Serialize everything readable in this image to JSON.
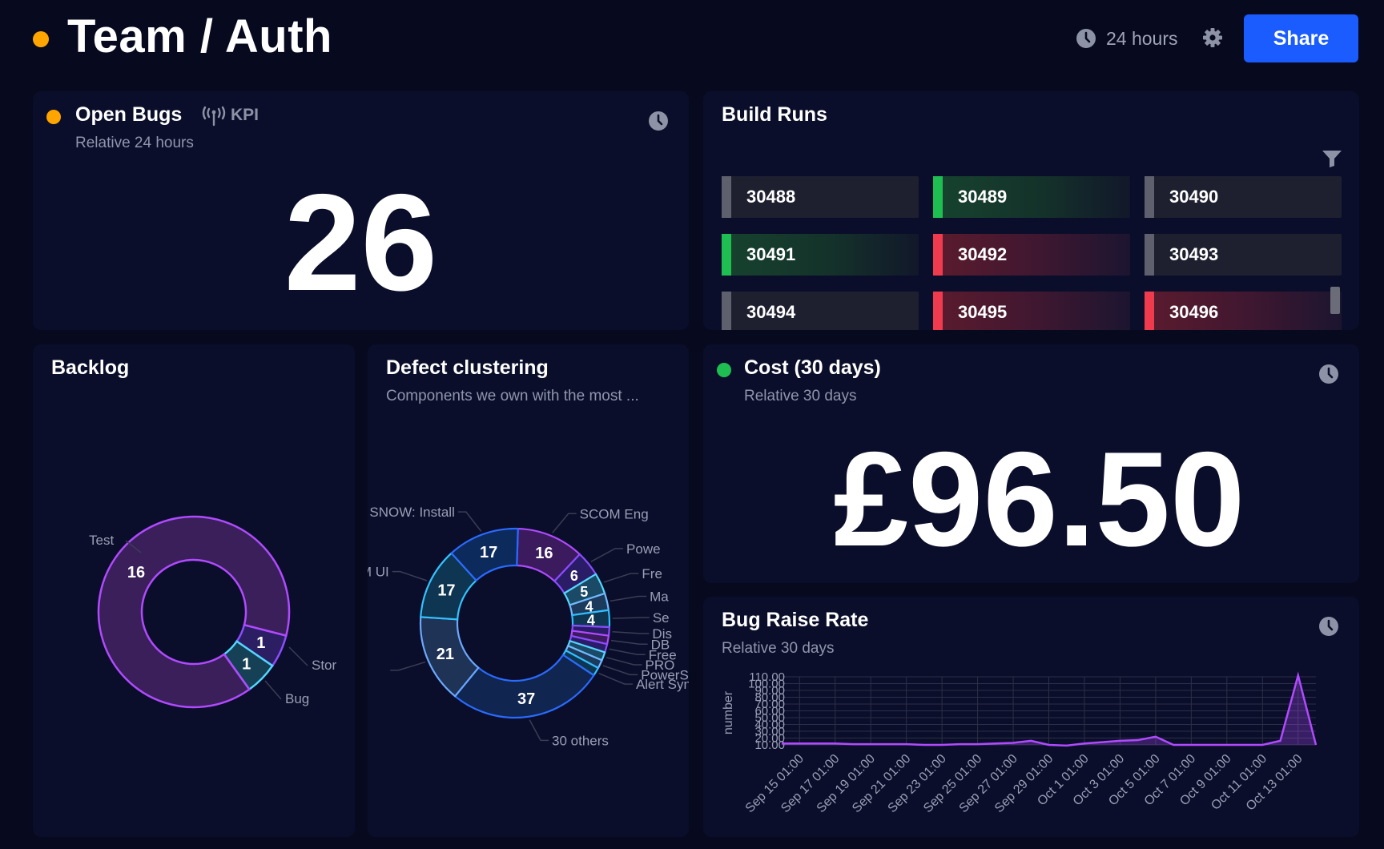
{
  "header": {
    "title": "Team / Auth",
    "time_range": "24 hours",
    "share_label": "Share",
    "status_color": "#ffa500",
    "accent_color": "#1a5cff"
  },
  "open_bugs": {
    "title": "Open Bugs",
    "badge": "KPI",
    "subtitle": "Relative 24 hours",
    "value": "26",
    "status_color": "#ffa500"
  },
  "build_runs": {
    "title": "Build Runs",
    "tiles": [
      {
        "label": "30488",
        "status": "gray"
      },
      {
        "label": "30489",
        "status": "green"
      },
      {
        "label": "30490",
        "status": "gray"
      },
      {
        "label": "30491",
        "status": "green"
      },
      {
        "label": "30492",
        "status": "red"
      },
      {
        "label": "30493",
        "status": "gray"
      },
      {
        "label": "30494",
        "status": "gray"
      },
      {
        "label": "30495",
        "status": "red"
      },
      {
        "label": "30496",
        "status": "red"
      }
    ]
  },
  "backlog": {
    "title": "Backlog",
    "chart_data": {
      "type": "pie",
      "variant": "donut",
      "categories": [
        "Test",
        "Stor",
        "Bug"
      ],
      "values": [
        16,
        1,
        1
      ],
      "colors": [
        "#3a1f5a",
        "#2b1e63",
        "#164055"
      ],
      "stroke_colors": [
        "#b04aff",
        "#8a4dff",
        "#52d6ff"
      ]
    }
  },
  "defect_clustering": {
    "title": "Defect clustering",
    "subtitle": "Components we own with the most ...",
    "chart_data": {
      "type": "pie",
      "variant": "donut",
      "categories": [
        "SCOM Eng",
        "Powe",
        "Fre",
        "Ma",
        "Se",
        "Dis",
        "DB",
        "Free",
        "PRO",
        "PowerS",
        "Alert Sync",
        "30 others",
        "",
        "OM UI",
        "SNOW: Install"
      ],
      "values": [
        16,
        6,
        5,
        4,
        4,
        2,
        2,
        2,
        2,
        2,
        2,
        37,
        21,
        17,
        17
      ],
      "value_labels": [
        "16",
        "6",
        "5",
        "4",
        "4",
        "",
        "",
        "",
        "",
        "",
        "",
        "37",
        "21",
        "17",
        "17"
      ],
      "fills": [
        "#3b1a5e",
        "#2a1c66",
        "#1a4a66",
        "#1b3a5c",
        "#0e3552",
        "#2a1c66",
        "#3b1a5e",
        "#2a1c66",
        "#1a4a66",
        "#1b3a5c",
        "#0e3552",
        "#102550",
        "#1e3356",
        "#0e3552",
        "#0d2a5c"
      ],
      "strokes": [
        "#b04aff",
        "#8a4dff",
        "#52d6ff",
        "#72b8ff",
        "#2fbfff",
        "#8a4dff",
        "#b04aff",
        "#8a4dff",
        "#52d6ff",
        "#72b8ff",
        "#2fbfff",
        "#2a6bff",
        "#6aa8ff",
        "#33c2ff",
        "#2a6bff"
      ]
    }
  },
  "cost": {
    "title": "Cost (30 days)",
    "subtitle": "Relative 30 days",
    "value": "£96.50",
    "status_color": "#1fbe52"
  },
  "bug_raise_rate": {
    "title": "Bug Raise Rate",
    "subtitle": "Relative 30 days",
    "chart_data": {
      "type": "area",
      "ylabel": "number",
      "xlabel": "",
      "ylim": [
        10,
        110
      ],
      "y_ticks": [
        "10.00",
        "20.00",
        "30.00",
        "40.00",
        "50.00",
        "60.00",
        "70.00",
        "80.00",
        "90.00",
        "100.00",
        "110.00"
      ],
      "x_ticks": [
        "Sep 15 01:00",
        "Sep 17 01:00",
        "Sep 19 01:00",
        "Sep 21 01:00",
        "Sep 23 01:00",
        "Sep 25 01:00",
        "Sep 27 01:00",
        "Sep 29 01:00",
        "Oct 1 01:00",
        "Oct 3 01:00",
        "Oct 5 01:00",
        "Oct 7 01:00",
        "Oct 9 01:00",
        "Oct 11 01:00",
        "Oct 13 01:00"
      ],
      "x": [
        "Sep 14",
        "Sep 15",
        "Sep 16",
        "Sep 17",
        "Sep 18",
        "Sep 19",
        "Sep 20",
        "Sep 21",
        "Sep 22",
        "Sep 23",
        "Sep 24",
        "Sep 25",
        "Sep 26",
        "Sep 27",
        "Sep 28",
        "Sep 29",
        "Sep 30",
        "Oct 1",
        "Oct 2",
        "Oct 3",
        "Oct 4",
        "Oct 5",
        "Oct 6",
        "Oct 7",
        "Oct 8",
        "Oct 9",
        "Oct 10",
        "Oct 11",
        "Oct 12",
        "Oct 13",
        "Oct 14"
      ],
      "series": [
        {
          "values": [
            12,
            12,
            12,
            12,
            11,
            11,
            11,
            11,
            10,
            10,
            11,
            11,
            12,
            13,
            16,
            10,
            9,
            12,
            14,
            16,
            17,
            22,
            10,
            10,
            10,
            10,
            10,
            10,
            16,
            112,
            10
          ]
        }
      ],
      "line_color": "#b04aff",
      "grid": true
    }
  }
}
